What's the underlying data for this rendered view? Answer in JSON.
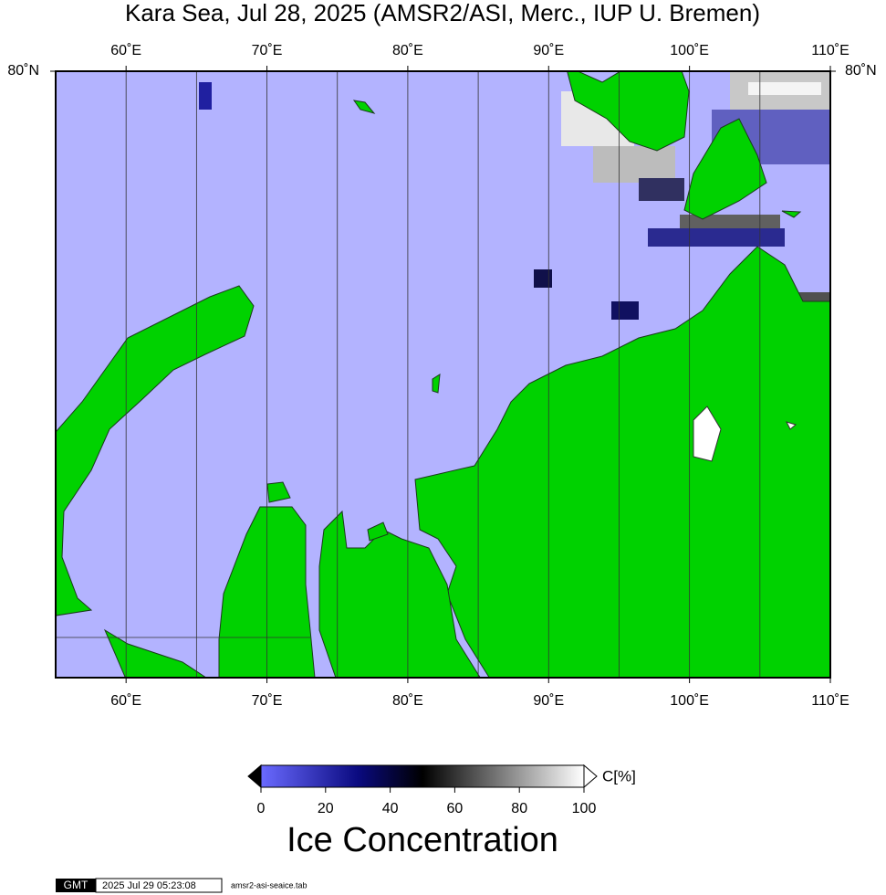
{
  "title": "Kara Sea, Jul 28, 2025 (AMSR2/ASI, Merc., IUP U. Bremen)",
  "map": {
    "xlim": [
      55,
      110
    ],
    "xticks": [
      {
        "value": 60,
        "label": "60˚E"
      },
      {
        "value": 70,
        "label": "70˚E"
      },
      {
        "value": 80,
        "label": "80˚E"
      },
      {
        "value": 90,
        "label": "90˚E"
      },
      {
        "value": 100,
        "label": "100˚E"
      },
      {
        "value": 110,
        "label": "110˚E"
      }
    ],
    "meridians": [
      60,
      65,
      70,
      75,
      80,
      85,
      90,
      95,
      100,
      105
    ],
    "yticks": [
      {
        "value": 80,
        "label": "80˚N"
      }
    ]
  },
  "colorbar": {
    "lim": [
      0,
      100
    ],
    "ticks": [
      0,
      20,
      40,
      60,
      80,
      100
    ],
    "unit": "C[%]",
    "label": "Ice Concentration"
  },
  "footer": {
    "logo": "GMT",
    "timestamp": "2025 Jul 29 05:23:08",
    "file": "amsr2-asi-seaice.tab"
  }
}
